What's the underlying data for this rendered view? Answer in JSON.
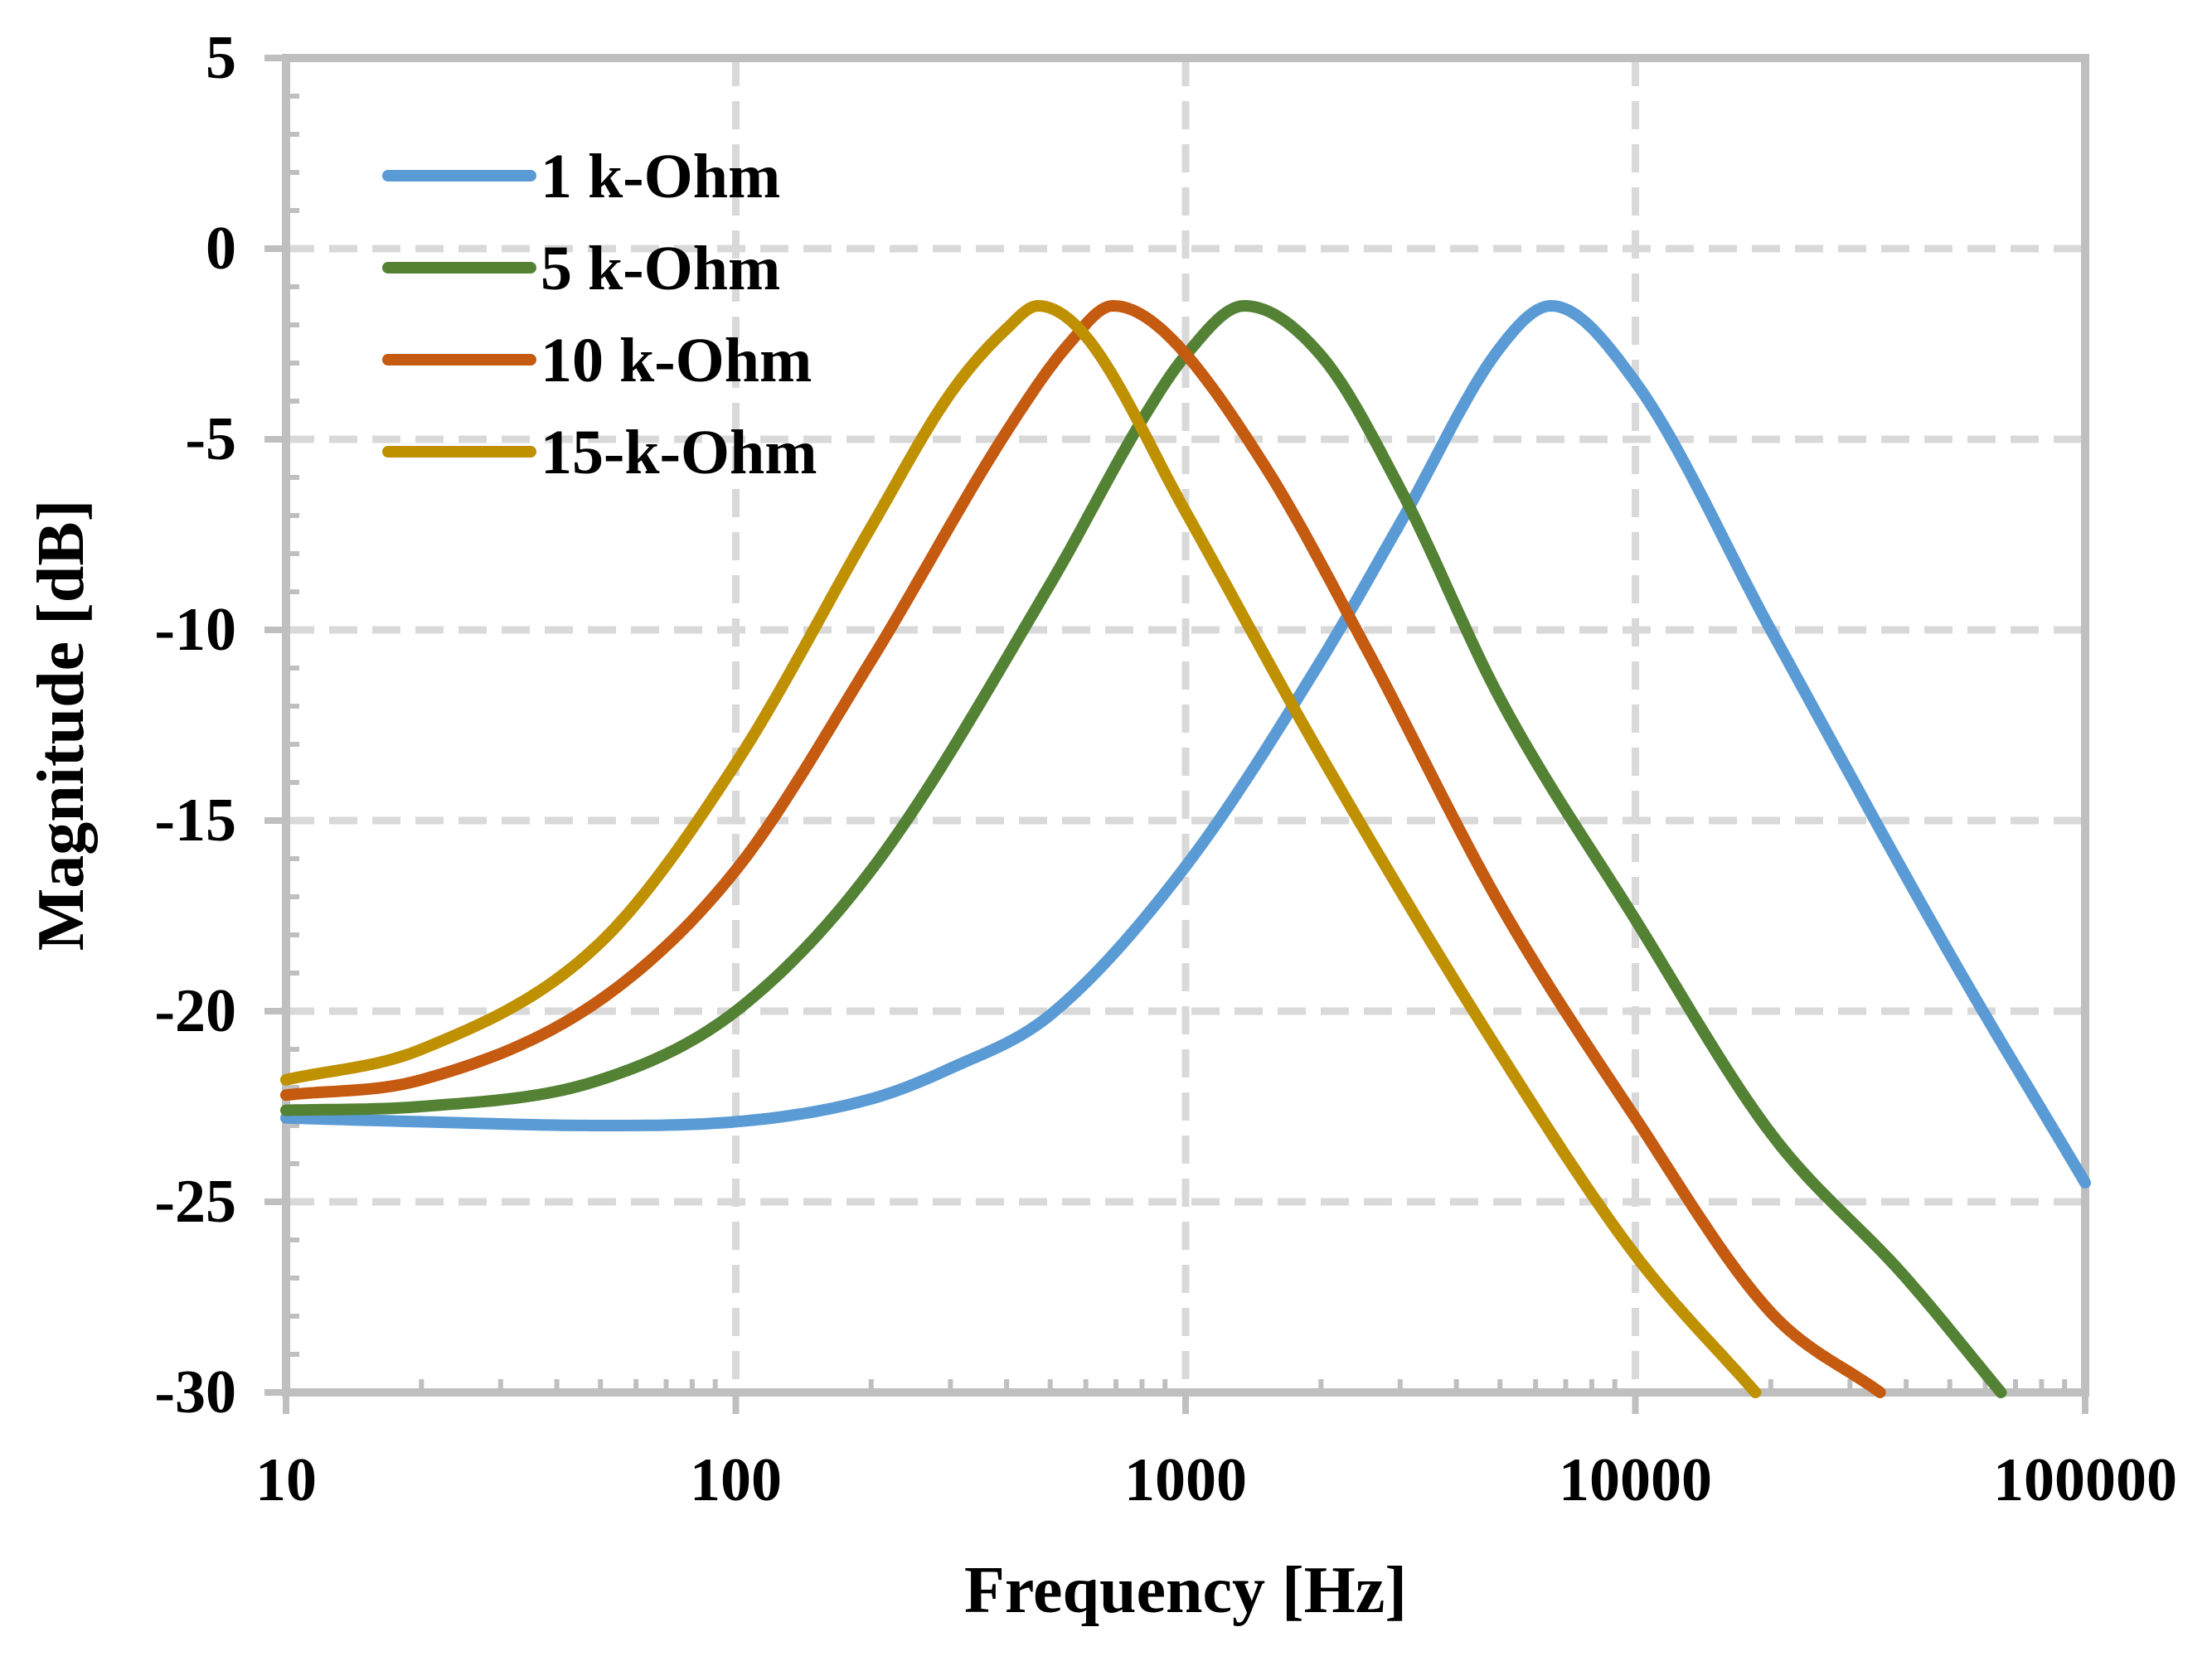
{
  "chart_data": {
    "type": "line",
    "title": "",
    "xlabel": "Frequency [Hz]",
    "ylabel": "Magnitude [dB]",
    "xscale": "log",
    "xlim": [
      10,
      100000
    ],
    "ylim": [
      -30,
      5
    ],
    "x_ticks": [
      10,
      100,
      1000,
      10000,
      100000
    ],
    "x_tick_labels": [
      "10",
      "100",
      "1000",
      "10000",
      "100000"
    ],
    "y_ticks": [
      5,
      0,
      -5,
      -10,
      -15,
      -20,
      -25,
      -30
    ],
    "y_tick_labels": [
      "5",
      "0",
      "-5",
      "-10",
      "-15",
      "-20",
      "-25",
      "-30"
    ],
    "grid": true,
    "legend_position": "top-left",
    "series": [
      {
        "name": "1 k-Ohm",
        "color": "#5b9bd5",
        "x": [
          10,
          20,
          50,
          100,
          200,
          300,
          500,
          1000,
          2000,
          3000,
          5000,
          6500,
          10000,
          20000,
          50000,
          100000
        ],
        "y": [
          -22.8,
          -22.9,
          -23.0,
          -22.9,
          -22.3,
          -21.5,
          -20.1,
          -16.2,
          -10.8,
          -7.2,
          -2.6,
          -1.5,
          -3.5,
          -10.0,
          -18.5,
          -24.5
        ]
      },
      {
        "name": "5 k-Ohm",
        "color": "#548235",
        "x": [
          10,
          20,
          50,
          100,
          200,
          500,
          800,
          1000,
          1350,
          2000,
          3000,
          5000,
          10000,
          20000,
          40000,
          65000
        ],
        "y": [
          -22.6,
          -22.5,
          -21.8,
          -20.0,
          -16.3,
          -8.8,
          -4.5,
          -2.8,
          -1.5,
          -2.8,
          -6.3,
          -11.8,
          -17.6,
          -23.2,
          -27.0,
          -30.0
        ]
      },
      {
        "name": "10 k-Ohm",
        "color": "#c55a11",
        "x": [
          10,
          20,
          50,
          100,
          200,
          400,
          550,
          690,
          900,
          1500,
          2500,
          5000,
          10000,
          20000,
          35000
        ],
        "y": [
          -22.2,
          -21.8,
          -19.7,
          -16.3,
          -10.8,
          -4.8,
          -2.5,
          -1.5,
          -2.2,
          -5.7,
          -10.4,
          -17.2,
          -22.8,
          -27.9,
          -30.0
        ]
      },
      {
        "name": "15-k-Ohm",
        "color": "#bf9000",
        "x": [
          10,
          20,
          50,
          100,
          200,
          300,
          400,
          470,
          600,
          1000,
          2000,
          5000,
          10000,
          18500
        ],
        "y": [
          -21.8,
          -21.0,
          -18.2,
          -13.5,
          -7.3,
          -3.8,
          -2.1,
          -1.5,
          -2.3,
          -6.9,
          -13.3,
          -21.1,
          -26.4,
          -30.0
        ]
      }
    ]
  }
}
